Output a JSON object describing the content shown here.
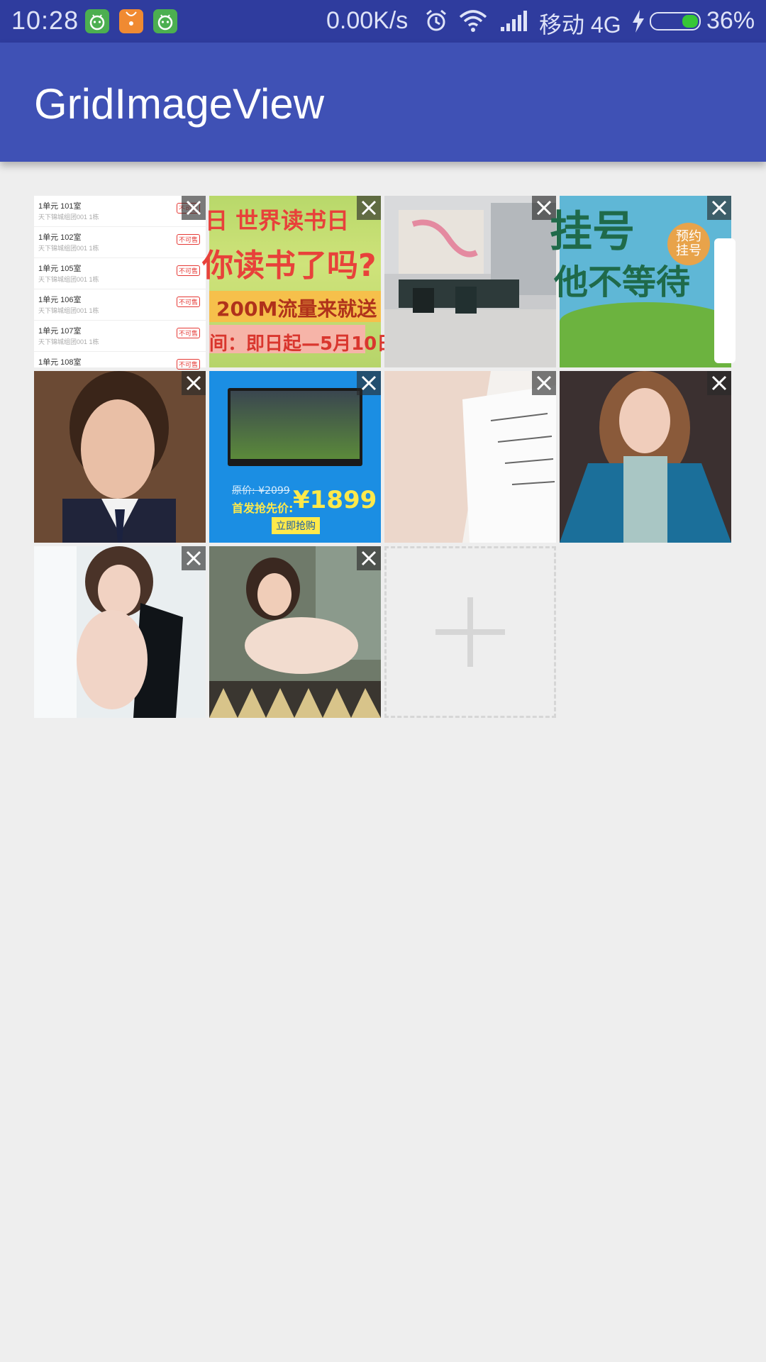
{
  "status_bar": {
    "time": "10:28",
    "net_speed": "0.00K/s",
    "carrier": "移动 4G",
    "battery": "36%",
    "battery_level": 0.36,
    "icons": [
      "android-notification-icon",
      "shopping-bag-notification-icon",
      "android-notification-icon",
      "alarm-icon",
      "wifi-icon",
      "signal-icon",
      "charging-icon",
      "battery-icon"
    ]
  },
  "app_bar": {
    "title": "GridImageView"
  },
  "grid": {
    "columns": 4,
    "images": [
      {
        "name": "listing-screenshot",
        "rows": [
          {
            "title": "1单元  101室",
            "sub": "天下锦城组团001  1栋",
            "tag": "不可售"
          },
          {
            "title": "1单元  102室",
            "sub": "天下锦城组团001  1栋",
            "tag": "不可售"
          },
          {
            "title": "1单元  105室",
            "sub": "天下锦城组团001  1栋",
            "tag": "不可售"
          },
          {
            "title": "1单元  106室",
            "sub": "天下锦城组团001  1栋",
            "tag": "不可售"
          },
          {
            "title": "1单元  107室",
            "sub": "天下锦城组团001  1栋",
            "tag": "不可售"
          },
          {
            "title": "1单元  108室",
            "sub": "",
            "tag": "不可售"
          }
        ]
      },
      {
        "name": "world-book-day-banner",
        "line1": "日 世界读书日",
        "line2": "你读书了吗?",
        "line3": "200M流量来就送",
        "line4": "间：即日起—5月10日"
      },
      {
        "name": "office-lobby-photo"
      },
      {
        "name": "registration-banner",
        "headline": "挂号",
        "subline": "他不等待",
        "badge": "预约挂号"
      },
      {
        "name": "portrait-photo-1"
      },
      {
        "name": "tv-sale-banner",
        "original_price": "原价: ¥2099",
        "sale_label": "首发抢先价:",
        "sale_price": "¥1899",
        "button": "立即抢购"
      },
      {
        "name": "book-reading-photo"
      },
      {
        "name": "portrait-photo-2"
      },
      {
        "name": "portrait-photo-3"
      },
      {
        "name": "portrait-photo-4"
      }
    ],
    "add_button": {
      "icon": "plus-icon"
    },
    "remove_icon": "close-icon"
  },
  "colors": {
    "status_bar": "#2f3c9e",
    "app_bar": "#3f51b5",
    "background": "#eeeeee"
  }
}
